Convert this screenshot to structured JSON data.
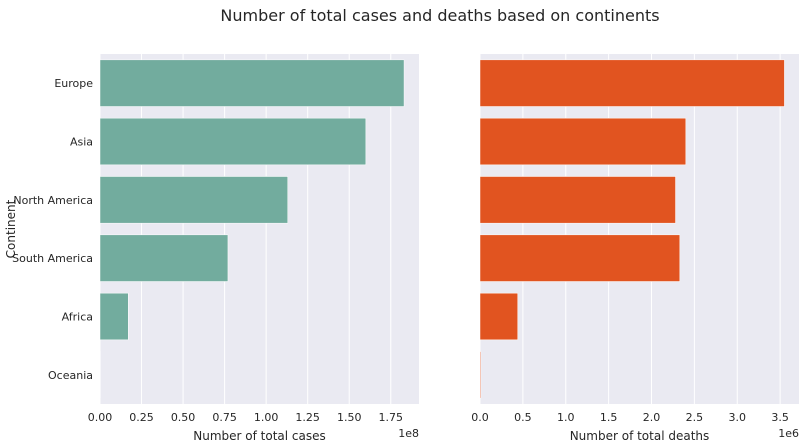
{
  "suptitle": "Number of total cases and deaths based on continents",
  "chart_data": [
    {
      "type": "bar",
      "orientation": "horizontal",
      "categories": [
        "Europe",
        "Asia",
        "North America",
        "South America",
        "Africa",
        "Oceania"
      ],
      "values": [
        183000000.0,
        160000000.0,
        113000000.0,
        77000000.0,
        17000000.0,
        200000.0
      ],
      "xlabel": "Number of total cases",
      "ylabel": "Continent",
      "xlim": [
        0,
        192000000.0
      ],
      "scale_multiplier_label": "1e8",
      "xticks": [
        0,
        25000000.0,
        50000000.0,
        75000000.0,
        100000000.0,
        125000000.0,
        150000000.0,
        175000000.0
      ],
      "xtick_labels": [
        "0.00",
        "0.25",
        "0.50",
        "0.75",
        "1.00",
        "1.25",
        "1.50",
        "1.75"
      ],
      "color": "#72ac9e",
      "grid": true
    },
    {
      "type": "bar",
      "orientation": "horizontal",
      "categories": [
        "Europe",
        "Asia",
        "North America",
        "South America",
        "Africa",
        "Oceania"
      ],
      "values": [
        3550000.0,
        2400000.0,
        2280000.0,
        2330000.0,
        440000.0,
        10000.0
      ],
      "xlabel": "Number of total deaths",
      "ylabel": "",
      "xlim": [
        0,
        3720000.0
      ],
      "scale_multiplier_label": "1e6",
      "xticks": [
        0,
        500000.0,
        1000000.0,
        1500000.0,
        2000000.0,
        2500000.0,
        3000000.0,
        3500000.0
      ],
      "xtick_labels": [
        "0.0",
        "0.5",
        "1.0",
        "1.5",
        "2.0",
        "2.5",
        "3.0",
        "3.5"
      ],
      "color": "#e15420",
      "grid": true
    }
  ]
}
